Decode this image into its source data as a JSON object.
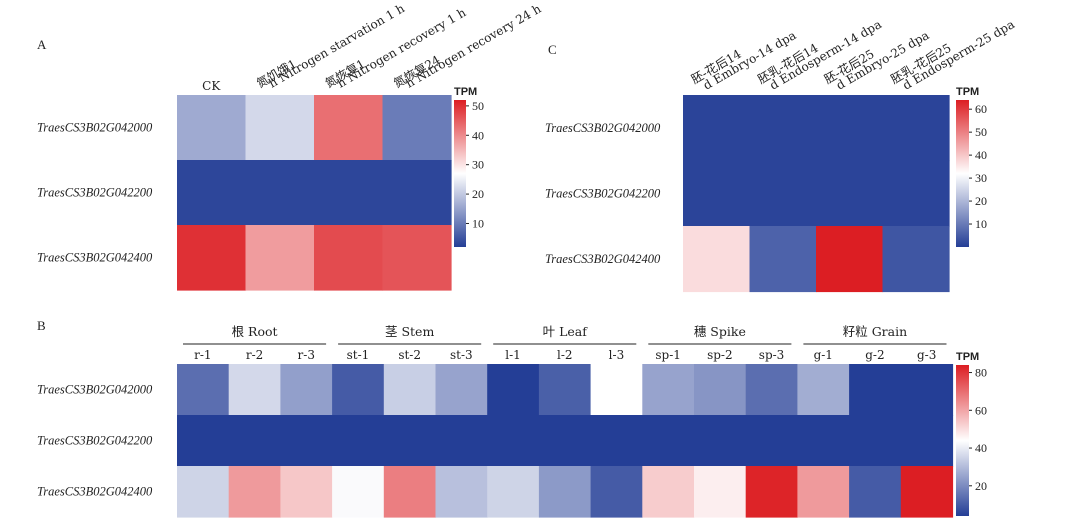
{
  "chart_data": [
    {
      "panel": "A",
      "type": "heatmap",
      "columns": [
        "CK",
        "氮饥饿1 h Nitrogen starvation 1 h",
        "氮恢复1 h Nitrogen recovery 1 h",
        "氮恢复24 h Nitrogen recovery 24 h"
      ],
      "rows": [
        "TraesCS3B02G042000",
        "TraesCS3B02G042200",
        "TraesCS3B02G042400"
      ],
      "values": [
        [
          16,
          22,
          43,
          10
        ],
        [
          3,
          3,
          3,
          3
        ],
        [
          50,
          38,
          47,
          46
        ]
      ],
      "legend": {
        "title": "TPM",
        "ticks": [
          10,
          20,
          30,
          40,
          50
        ],
        "range": [
          2,
          52
        ]
      }
    },
    {
      "panel": "C",
      "type": "heatmap",
      "columns": [
        "胚-花后14 d Embryo-14 dpa",
        "胚乳-花后14 d Endosperm-14 dpa",
        "胚-花后25 d Embryo-25 dpa",
        "胚乳-花后25 d Endosperm-25 dpa"
      ],
      "rows": [
        "TraesCS3B02G042000",
        "TraesCS3B02G042200",
        "TraesCS3B02G042400"
      ],
      "values": [
        [
          1,
          1,
          1,
          1
        ],
        [
          1,
          1,
          1,
          1
        ],
        [
          37,
          6,
          64,
          4
        ]
      ],
      "legend": {
        "title": "TPM",
        "ticks": [
          10,
          20,
          30,
          40,
          50,
          60
        ],
        "range": [
          0,
          64
        ]
      }
    },
    {
      "panel": "B",
      "type": "heatmap",
      "groups": [
        {
          "label": "根 Root",
          "columns": [
            "r-1",
            "r-2",
            "r-3"
          ]
        },
        {
          "label": "茎 Stem",
          "columns": [
            "st-1",
            "st-2",
            "st-3"
          ]
        },
        {
          "label": "叶 Leaf",
          "columns": [
            "l-1",
            "l-2",
            "l-3"
          ]
        },
        {
          "label": "穗 Spike",
          "columns": [
            "sp-1",
            "sp-2",
            "sp-3"
          ]
        },
        {
          "label": "籽粒 Grain",
          "columns": [
            "g-1",
            "g-2",
            "g-3"
          ]
        }
      ],
      "rows": [
        "TraesCS3B02G042000",
        "TraesCS3B02G042200",
        "TraesCS3B02G042400"
      ],
      "values": [
        [
          14,
          36,
          24,
          10,
          34,
          25,
          4,
          11,
          44,
          25,
          22,
          14,
          27,
          4,
          4
        ],
        [
          4,
          4,
          4,
          4,
          4,
          4,
          4,
          4,
          4,
          4,
          4,
          4,
          4,
          4,
          4
        ],
        [
          35,
          62,
          54,
          43,
          67,
          31,
          35,
          23,
          10,
          53,
          47,
          83,
          62,
          10,
          86
        ]
      ],
      "legend": {
        "title": "TPM",
        "ticks": [
          20,
          40,
          60,
          80
        ],
        "range": [
          4,
          84
        ]
      }
    }
  ]
}
